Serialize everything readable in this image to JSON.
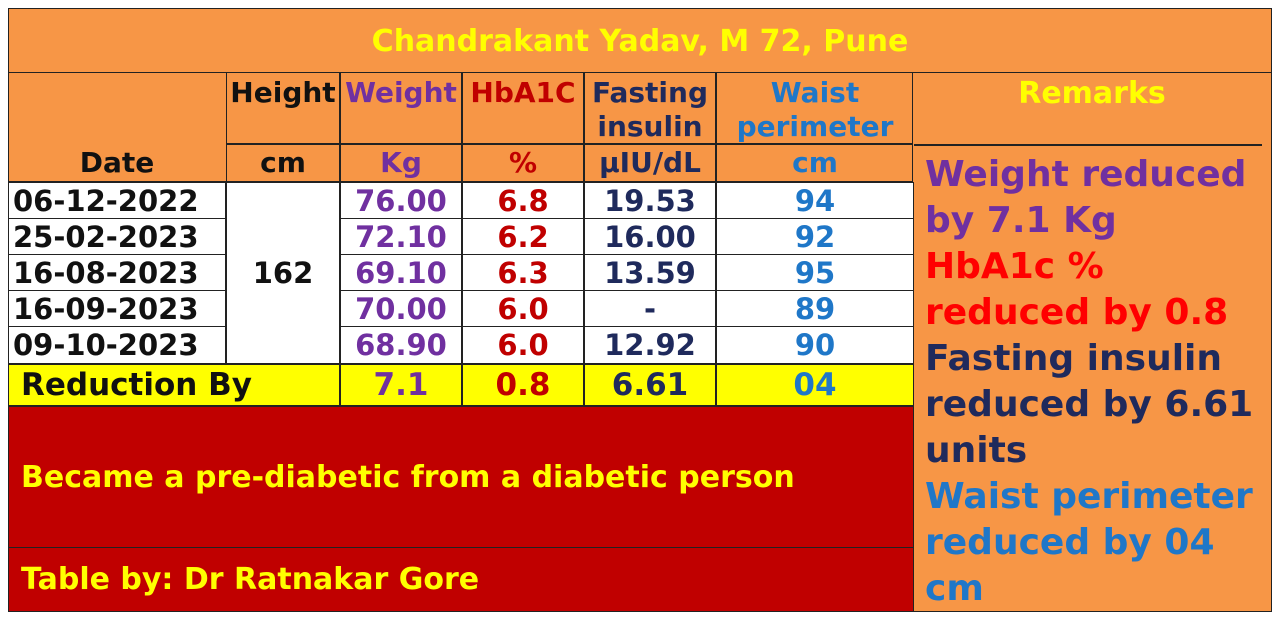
{
  "title": "Chandrakant Yadav, M 72, Pune",
  "headers": {
    "date": "Date",
    "height": "Height",
    "height_unit": "cm",
    "weight": "Weight",
    "weight_unit": "Kg",
    "hba1c": "HbA1C",
    "hba1c_unit": "%",
    "insulin_line1": "Fasting",
    "insulin_line2": "insulin",
    "insulin_unit": "µIU/dL",
    "waist_line1": "Waist",
    "waist_line2": "perimeter",
    "waist_unit": "cm",
    "remarks": "Remarks"
  },
  "height_value": "162",
  "rows": [
    {
      "date": "06-12-2022",
      "weight": "76.00",
      "hba1c": "6.8",
      "insulin": "19.53",
      "waist": "94"
    },
    {
      "date": "25-02-2023",
      "weight": "72.10",
      "hba1c": "6.2",
      "insulin": "16.00",
      "waist": "92"
    },
    {
      "date": "16-08-2023",
      "weight": "69.10",
      "hba1c": "6.3",
      "insulin": "13.59",
      "waist": "95"
    },
    {
      "date": "16-09-2023",
      "weight": "70.00",
      "hba1c": "6.0",
      "insulin": "-",
      "waist": "89"
    },
    {
      "date": "09-10-2023",
      "weight": "68.90",
      "hba1c": "6.0",
      "insulin": "12.92",
      "waist": "90"
    }
  ],
  "reduction": {
    "label": "Reduction By",
    "weight": "7.1",
    "hba1c": "0.8",
    "insulin": "6.61",
    "waist": "04"
  },
  "remarks": {
    "weight": "Weight reduced by 7.1 Kg",
    "hba1c": "HbA1c % reduced by 0.8",
    "insulin": "Fasting insulin reduced by 6.61 units",
    "waist": "Waist perimeter reduced by 04 cm"
  },
  "conclusion": "Became a pre-diabetic from a diabetic person",
  "credit": "Table by: Dr Ratnakar Gore",
  "colors": {
    "orange": "#F79646",
    "yellow": "#FFFF00",
    "dark_red": "#C00000",
    "purple": "#7030A0",
    "navy": "#1F2A5C",
    "blue": "#1F77C8"
  }
}
